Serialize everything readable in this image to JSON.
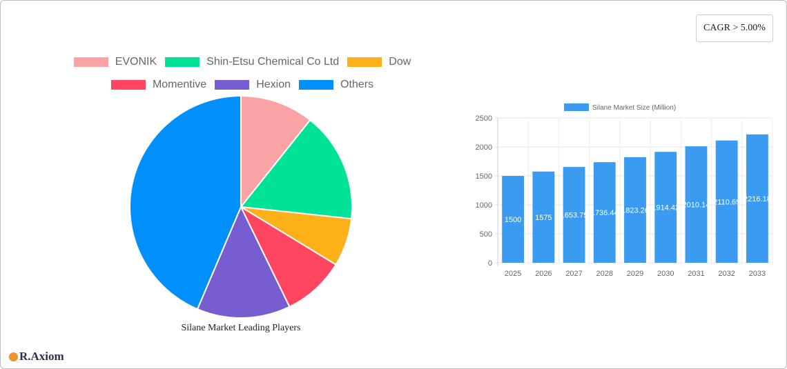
{
  "cagr_label": "CAGR > 5.00%",
  "logo_text": "R.Axiom",
  "chart_data": [
    {
      "type": "pie",
      "title": "Silane Market Leading Players",
      "legend_position": "top",
      "labels": [
        "EVONIK",
        "Shin-Etsu Chemical Co  Ltd",
        "Dow",
        "Momentive",
        "Hexion",
        "Others"
      ],
      "values": [
        10.7,
        16.0,
        7.0,
        9.1,
        13.6,
        43.6
      ],
      "colors": [
        "#f9a3a4",
        "#00e396",
        "#feb019",
        "#ff4560",
        "#775dd0",
        "#008ffb"
      ]
    },
    {
      "type": "bar",
      "legend": "Silane Market Size (Million)",
      "color": "#3a9bf0",
      "categories": [
        "2025",
        "2026",
        "2027",
        "2028",
        "2029",
        "2030",
        "2031",
        "2032",
        "2033"
      ],
      "values": [
        1500,
        1575,
        1653.75,
        1736.44,
        1823.26,
        1914.42,
        2010.14,
        2110.65,
        2216.18
      ],
      "data_labels": [
        "1500",
        "1575",
        "1653.75",
        "1736.44",
        "1823.26",
        "1914.42",
        "2010.14",
        "2110.65",
        "2216.18"
      ],
      "ylim": [
        0,
        2500
      ],
      "yticks": [
        "0",
        "500",
        "1000",
        "1500",
        "2000",
        "2500"
      ],
      "grid": true
    }
  ]
}
